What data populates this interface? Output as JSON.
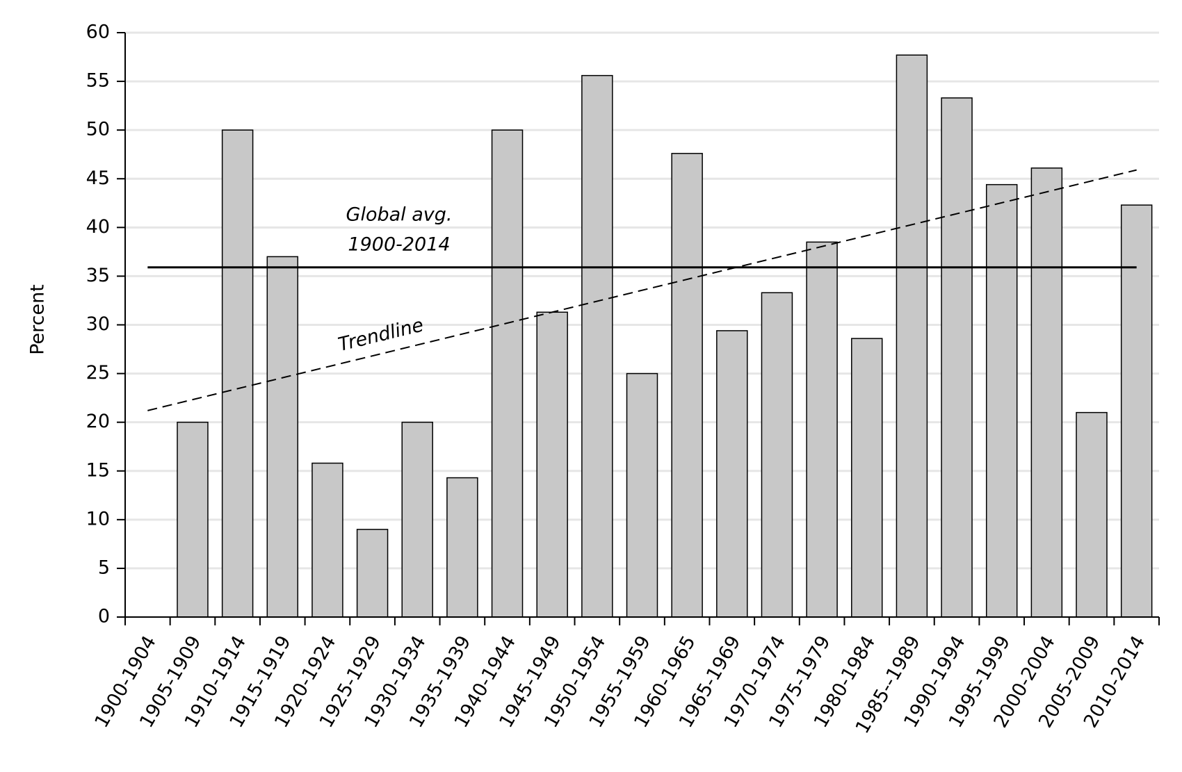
{
  "chart_data": {
    "type": "bar",
    "y_label": "Percent",
    "categories": [
      "1900-1904",
      "1905-1909",
      "1910-1914",
      "1915-1919",
      "1920-1924",
      "1925-1929",
      "1930-1934",
      "1935-1939",
      "1940-1944",
      "1945-1949",
      "1950-1954",
      "1955-1959",
      "1960-1965",
      "1965-1969",
      "1970-1974",
      "1975-1979",
      "1980-1984",
      "1985--1989",
      "1990-1994",
      "1995-1999",
      "2000-2004",
      "2005-2009",
      "2010-2014"
    ],
    "values": [
      null,
      20,
      50,
      37,
      15.8,
      9,
      20,
      14.3,
      50,
      31.3,
      55.6,
      25,
      47.6,
      29.4,
      33.3,
      38.5,
      28.6,
      57.7,
      53.3,
      44.4,
      46.1,
      21,
      42.3
    ],
    "color": "#c8c8c8",
    "ylim": [
      0,
      60
    ],
    "yticks": [
      0,
      5,
      10,
      15,
      20,
      25,
      30,
      35,
      40,
      45,
      50,
      55,
      60
    ],
    "grid": true,
    "global_average": {
      "label": [
        "Global avg.",
        "1900-2014"
      ],
      "value": 35.9
    },
    "trendline": {
      "label": "Trendline",
      "values": [
        21.2,
        45.9
      ]
    }
  }
}
